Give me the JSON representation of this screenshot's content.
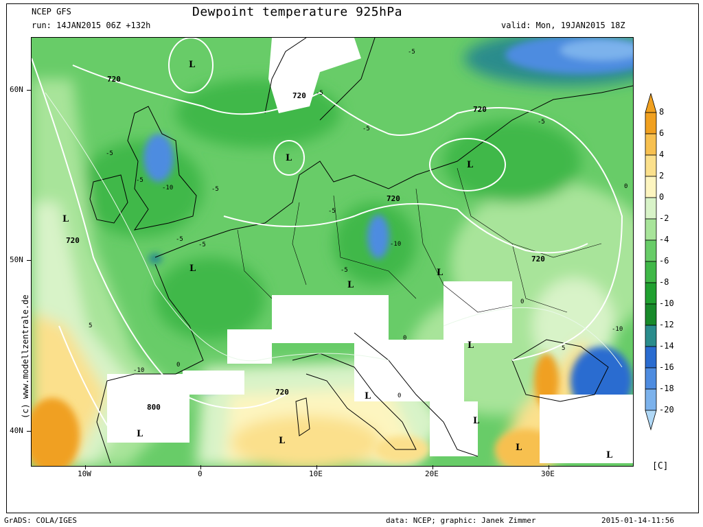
{
  "header": {
    "model": "NCEP GFS",
    "run": "run: 14JAN2015 06Z +132h",
    "title": "Dewpoint temperature 925hPa",
    "valid": "valid: Mon, 19JAN2015 18Z"
  },
  "axes": {
    "lon_labels": [
      "10W",
      "0",
      "10E",
      "20E",
      "30E"
    ],
    "lat_labels": [
      "60N",
      "50N",
      "40N"
    ]
  },
  "colorbar": {
    "unit": "[C]",
    "levels": [
      "8",
      "6",
      "4",
      "2",
      "0",
      "-2",
      "-4",
      "-6",
      "-8",
      "-10",
      "-12",
      "-14",
      "-16",
      "-18",
      "-20"
    ],
    "colors": [
      "#f0a020",
      "#f7c050",
      "#fbe08c",
      "#fdf5c0",
      "#d8f3c8",
      "#a8e49a",
      "#68cc68",
      "#40b848",
      "#20a030",
      "#188a2a",
      "#2a8c8c",
      "#2a6cd0",
      "#4e8ce0",
      "#7cb2ec",
      "#b0d8f6"
    ]
  },
  "map_labels": {
    "contours": [
      "720",
      "720",
      "720",
      "720",
      "720",
      "720",
      "720",
      "800"
    ],
    "dewpoint_marks": [
      "-5",
      "-5",
      "-5",
      "-5",
      "-5",
      "-5",
      "-5",
      "-5",
      "-5",
      "-5",
      "-5",
      "-10",
      "-10",
      "-10",
      "-10",
      "5",
      "5",
      "0",
      "0",
      "0",
      "0",
      "0"
    ],
    "lows": [
      "L",
      "L",
      "L",
      "L",
      "L",
      "L",
      "L",
      "L",
      "L",
      "L",
      "L",
      "L",
      "L",
      "L"
    ]
  },
  "watermark": "(c) www.modellzentrale.de",
  "footer": {
    "left": "GrADS: COLA/IGES",
    "center": "data: NCEP; graphic: Janek Zimmer",
    "right": "2015-01-14-11:56"
  }
}
